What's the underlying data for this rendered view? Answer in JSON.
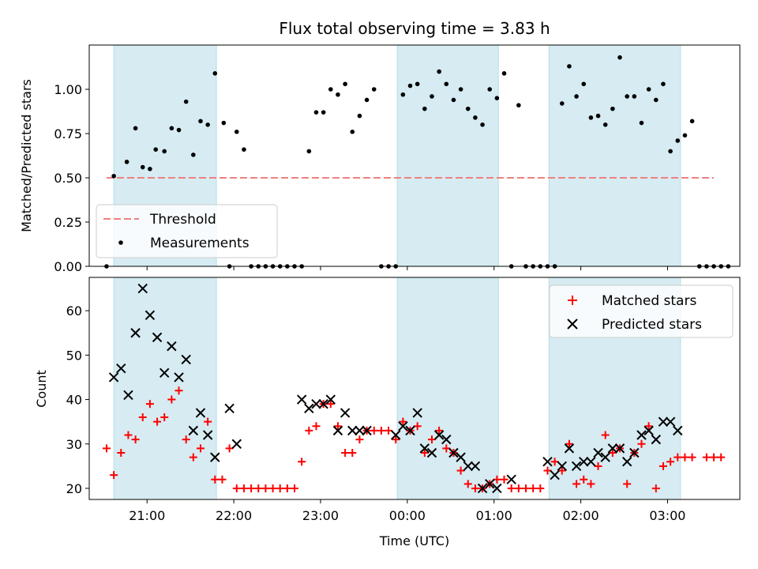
{
  "figure": {
    "title": "Flux total observing time = 3.83 h",
    "xlabel": "Time (UTC)"
  },
  "chart_data": [
    {
      "type": "scatter",
      "ylabel": "Matched/Predicted stars",
      "ylim": [
        0,
        1.25
      ],
      "xlim": [
        "20:20",
        "03:50"
      ],
      "yticks": [
        "0.00",
        "0.25",
        "0.50",
        "0.75",
        "1.00"
      ],
      "legend_position": "lower-left",
      "shaded_intervals": [
        [
          "20:37",
          "21:48"
        ],
        [
          "23:53",
          "01:03"
        ],
        [
          "01:38",
          "03:09"
        ]
      ],
      "threshold": {
        "name": "Threshold",
        "value": 0.5,
        "x_range": [
          "20:32",
          "03:32"
        ],
        "color": "#f08080"
      },
      "series": [
        {
          "name": "Measurements",
          "color": "#000000",
          "points": [
            [
              "20:32",
              0.0
            ],
            [
              "20:37",
              0.51
            ],
            [
              "20:46",
              0.59
            ],
            [
              "20:52",
              0.78
            ],
            [
              "20:57",
              0.56
            ],
            [
              "21:02",
              0.55
            ],
            [
              "21:06",
              0.66
            ],
            [
              "21:12",
              0.65
            ],
            [
              "21:17",
              0.78
            ],
            [
              "21:22",
              0.77
            ],
            [
              "21:27",
              0.93
            ],
            [
              "21:32",
              0.63
            ],
            [
              "21:37",
              0.82
            ],
            [
              "21:42",
              0.8
            ],
            [
              "21:47",
              1.09
            ],
            [
              "21:53",
              0.81
            ],
            [
              "21:57",
              0.0
            ],
            [
              "22:02",
              0.76
            ],
            [
              "22:07",
              0.66
            ],
            [
              "22:12",
              0.0
            ],
            [
              "22:17",
              0.0
            ],
            [
              "22:22",
              0.0
            ],
            [
              "22:27",
              0.0
            ],
            [
              "22:32",
              0.0
            ],
            [
              "22:37",
              0.0
            ],
            [
              "22:42",
              0.0
            ],
            [
              "22:47",
              0.0
            ],
            [
              "22:52",
              0.65
            ],
            [
              "22:57",
              0.87
            ],
            [
              "23:02",
              0.87
            ],
            [
              "23:07",
              1.0
            ],
            [
              "23:12",
              0.97
            ],
            [
              "23:17",
              1.03
            ],
            [
              "23:22",
              0.76
            ],
            [
              "23:27",
              0.85
            ],
            [
              "23:32",
              0.94
            ],
            [
              "23:37",
              1.0
            ],
            [
              "23:42",
              0.0
            ],
            [
              "23:47",
              0.0
            ],
            [
              "23:52",
              0.0
            ],
            [
              "23:57",
              0.97
            ],
            [
              "00:02",
              1.02
            ],
            [
              "00:07",
              1.03
            ],
            [
              "00:12",
              0.89
            ],
            [
              "00:17",
              0.96
            ],
            [
              "00:22",
              1.1
            ],
            [
              "00:27",
              1.03
            ],
            [
              "00:32",
              0.94
            ],
            [
              "00:37",
              1.0
            ],
            [
              "00:42",
              0.89
            ],
            [
              "00:47",
              0.84
            ],
            [
              "00:52",
              0.8
            ],
            [
              "00:57",
              1.0
            ],
            [
              "01:02",
              0.95
            ],
            [
              "01:07",
              1.09
            ],
            [
              "01:12",
              0.0
            ],
            [
              "01:17",
              0.91
            ],
            [
              "01:22",
              0.0
            ],
            [
              "01:27",
              0.0
            ],
            [
              "01:32",
              0.0
            ],
            [
              "01:37",
              0.0
            ],
            [
              "01:42",
              0.0
            ],
            [
              "01:47",
              0.92
            ],
            [
              "01:52",
              1.13
            ],
            [
              "01:57",
              0.96
            ],
            [
              "02:02",
              1.03
            ],
            [
              "02:07",
              0.84
            ],
            [
              "02:12",
              0.85
            ],
            [
              "02:17",
              0.8
            ],
            [
              "02:22",
              0.89
            ],
            [
              "02:27",
              1.18
            ],
            [
              "02:32",
              0.96
            ],
            [
              "02:37",
              0.96
            ],
            [
              "02:42",
              0.81
            ],
            [
              "02:47",
              1.0
            ],
            [
              "02:52",
              0.94
            ],
            [
              "02:57",
              1.03
            ],
            [
              "03:02",
              0.65
            ],
            [
              "03:07",
              0.71
            ],
            [
              "03:12",
              0.74
            ],
            [
              "03:17",
              0.82
            ],
            [
              "03:22",
              0.0
            ],
            [
              "03:27",
              0.0
            ],
            [
              "03:32",
              0.0
            ],
            [
              "03:37",
              0.0
            ],
            [
              "03:42",
              0.0
            ]
          ]
        }
      ]
    },
    {
      "type": "scatter",
      "ylabel": "Count",
      "ylim": [
        17.5,
        67.5
      ],
      "xlim": [
        "20:20",
        "03:50"
      ],
      "yticks": [
        "20",
        "30",
        "40",
        "50",
        "60"
      ],
      "xticks": [
        "21:00",
        "22:00",
        "23:00",
        "00:00",
        "01:00",
        "02:00",
        "03:00"
      ],
      "legend_position": "upper-right",
      "shaded_intervals": [
        [
          "20:37",
          "21:48"
        ],
        [
          "23:53",
          "01:03"
        ],
        [
          "01:38",
          "03:09"
        ]
      ],
      "series": [
        {
          "name": "Matched stars",
          "marker": "plus",
          "color": "#ff0000",
          "points": [
            [
              "20:32",
              29
            ],
            [
              "20:37",
              23
            ],
            [
              "20:42",
              28
            ],
            [
              "20:47",
              32
            ],
            [
              "20:52",
              31
            ],
            [
              "20:57",
              36
            ],
            [
              "21:02",
              39
            ],
            [
              "21:07",
              35
            ],
            [
              "21:12",
              36
            ],
            [
              "21:17",
              40
            ],
            [
              "21:22",
              42
            ],
            [
              "21:27",
              31
            ],
            [
              "21:32",
              27
            ],
            [
              "21:37",
              29
            ],
            [
              "21:42",
              35
            ],
            [
              "21:47",
              22
            ],
            [
              "21:52",
              22
            ],
            [
              "21:57",
              29
            ],
            [
              "22:02",
              20
            ],
            [
              "22:07",
              20
            ],
            [
              "22:12",
              20
            ],
            [
              "22:17",
              20
            ],
            [
              "22:22",
              20
            ],
            [
              "22:27",
              20
            ],
            [
              "22:32",
              20
            ],
            [
              "22:37",
              20
            ],
            [
              "22:42",
              20
            ],
            [
              "22:47",
              26
            ],
            [
              "22:52",
              33
            ],
            [
              "22:57",
              34
            ],
            [
              "23:02",
              39
            ],
            [
              "23:07",
              39
            ],
            [
              "23:12",
              34
            ],
            [
              "23:17",
              28
            ],
            [
              "23:22",
              28
            ],
            [
              "23:27",
              31
            ],
            [
              "23:32",
              33
            ],
            [
              "23:37",
              33
            ],
            [
              "23:42",
              33
            ],
            [
              "23:47",
              33
            ],
            [
              "23:52",
              31
            ],
            [
              "23:57",
              35
            ],
            [
              "00:02",
              33
            ],
            [
              "00:07",
              34
            ],
            [
              "00:12",
              28
            ],
            [
              "00:17",
              31
            ],
            [
              "00:22",
              33
            ],
            [
              "00:27",
              29
            ],
            [
              "00:32",
              28
            ],
            [
              "00:37",
              24
            ],
            [
              "00:42",
              21
            ],
            [
              "00:47",
              20
            ],
            [
              "00:52",
              20
            ],
            [
              "00:57",
              21
            ],
            [
              "01:02",
              22
            ],
            [
              "01:07",
              22
            ],
            [
              "01:12",
              20
            ],
            [
              "01:17",
              20
            ],
            [
              "01:22",
              20
            ],
            [
              "01:27",
              20
            ],
            [
              "01:32",
              20
            ],
            [
              "01:37",
              24
            ],
            [
              "01:42",
              26
            ],
            [
              "01:47",
              24
            ],
            [
              "01:52",
              30
            ],
            [
              "01:57",
              21
            ],
            [
              "02:02",
              22
            ],
            [
              "02:07",
              21
            ],
            [
              "02:12",
              25
            ],
            [
              "02:17",
              32
            ],
            [
              "02:22",
              28
            ],
            [
              "02:27",
              29
            ],
            [
              "02:32",
              21
            ],
            [
              "02:37",
              28
            ],
            [
              "02:42",
              30
            ],
            [
              "02:47",
              34
            ],
            [
              "02:52",
              20
            ],
            [
              "02:57",
              25
            ],
            [
              "03:02",
              26
            ],
            [
              "03:07",
              27
            ],
            [
              "03:12",
              27
            ],
            [
              "03:17",
              27
            ],
            [
              "03:27",
              27
            ],
            [
              "03:32",
              27
            ],
            [
              "03:37",
              27
            ]
          ]
        },
        {
          "name": "Predicted stars",
          "marker": "x",
          "color": "#000000",
          "points": [
            [
              "20:37",
              45
            ],
            [
              "20:42",
              47
            ],
            [
              "20:47",
              41
            ],
            [
              "20:52",
              55
            ],
            [
              "20:57",
              65
            ],
            [
              "21:02",
              59
            ],
            [
              "21:07",
              54
            ],
            [
              "21:12",
              46
            ],
            [
              "21:17",
              52
            ],
            [
              "21:22",
              45
            ],
            [
              "21:27",
              49
            ],
            [
              "21:32",
              33
            ],
            [
              "21:37",
              37
            ],
            [
              "21:42",
              32
            ],
            [
              "21:47",
              27
            ],
            [
              "21:57",
              38
            ],
            [
              "22:02",
              30
            ],
            [
              "22:47",
              40
            ],
            [
              "22:52",
              38
            ],
            [
              "22:57",
              39
            ],
            [
              "23:02",
              39
            ],
            [
              "23:07",
              40
            ],
            [
              "23:12",
              33
            ],
            [
              "23:17",
              37
            ],
            [
              "23:22",
              33
            ],
            [
              "23:27",
              33
            ],
            [
              "23:32",
              33
            ],
            [
              "23:52",
              32
            ],
            [
              "23:57",
              34
            ],
            [
              "00:02",
              33
            ],
            [
              "00:07",
              37
            ],
            [
              "00:12",
              29
            ],
            [
              "00:17",
              28
            ],
            [
              "00:22",
              32
            ],
            [
              "00:27",
              31
            ],
            [
              "00:32",
              28
            ],
            [
              "00:37",
              27
            ],
            [
              "00:42",
              25
            ],
            [
              "00:47",
              25
            ],
            [
              "00:52",
              20
            ],
            [
              "00:57",
              21
            ],
            [
              "01:02",
              20
            ],
            [
              "01:12",
              22
            ],
            [
              "01:37",
              26
            ],
            [
              "01:42",
              23
            ],
            [
              "01:47",
              25
            ],
            [
              "01:52",
              29
            ],
            [
              "01:57",
              25
            ],
            [
              "02:02",
              26
            ],
            [
              "02:07",
              26
            ],
            [
              "02:12",
              28
            ],
            [
              "02:17",
              27
            ],
            [
              "02:22",
              29
            ],
            [
              "02:27",
              29
            ],
            [
              "02:32",
              26
            ],
            [
              "02:37",
              28
            ],
            [
              "02:42",
              32
            ],
            [
              "02:47",
              33
            ],
            [
              "02:52",
              31
            ],
            [
              "02:57",
              35
            ],
            [
              "03:02",
              35
            ],
            [
              "03:07",
              33
            ]
          ]
        }
      ]
    }
  ]
}
